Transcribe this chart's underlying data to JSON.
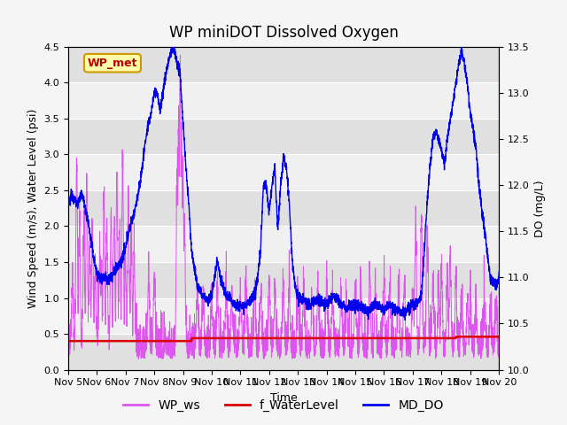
{
  "title": "WP miniDOT Dissolved Oxygen",
  "xlabel": "Time",
  "ylabel_left": "Wind Speed (m/s), Water Level (psi)",
  "ylabel_right": "DO (mg/L)",
  "ylim_left": [
    0.0,
    4.5
  ],
  "ylim_right": [
    10.0,
    13.5
  ],
  "xlim": [
    0,
    15
  ],
  "x_tick_labels": [
    "Nov 5",
    "Nov 6",
    "Nov 7",
    "Nov 8",
    "Nov 9",
    "Nov 10",
    "Nov 11",
    "Nov 12",
    "Nov 13",
    "Nov 14",
    "Nov 15",
    "Nov 16",
    "Nov 17",
    "Nov 18",
    "Nov 19",
    "Nov 20"
  ],
  "x_tick_positions": [
    0,
    1,
    2,
    3,
    4,
    5,
    6,
    7,
    8,
    9,
    10,
    11,
    12,
    13,
    14,
    15
  ],
  "wp_ws_color": "#dd55ee",
  "f_water_level_color": "#dd0000",
  "md_do_color": "#0000ee",
  "background_color": "#f5f5f5",
  "plot_bg_color": "#f0f0f0",
  "band_dark": "#e0e0e0",
  "band_light": "#f0f0f0",
  "annotation_text": "WP_met",
  "annotation_box_facecolor": "#ffffaa",
  "annotation_box_edgecolor": "#cc9900",
  "annotation_text_color": "#bb0000",
  "legend_items": [
    "WP_ws",
    "f_WaterLevel",
    "MD_DO"
  ],
  "legend_colors": [
    "#dd55ee",
    "#dd0000",
    "#0000ee"
  ],
  "f_water_level_value": 0.43,
  "title_fontsize": 12,
  "label_fontsize": 9,
  "tick_fontsize": 8,
  "legend_fontsize": 10
}
